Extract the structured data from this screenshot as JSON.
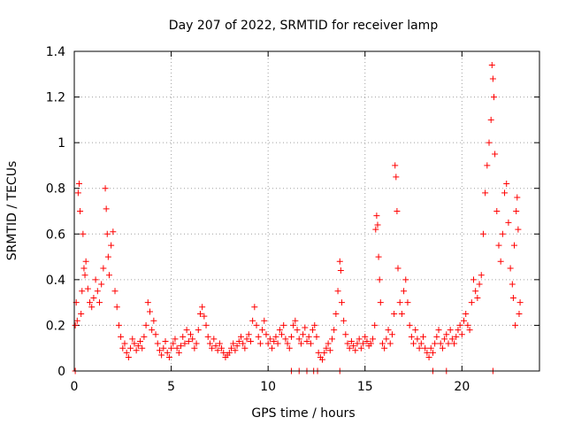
{
  "chart_data": {
    "type": "scatter",
    "title": "Day 207 of 2022, SRMTID for receiver lamp",
    "xlabel": "GPS time / hours",
    "ylabel": "SRMTID / TECUs",
    "xlim": [
      0,
      24
    ],
    "ylim": [
      0,
      1.4
    ],
    "xticks": [
      0,
      5,
      10,
      15,
      20
    ],
    "xtick_labels": [
      "0",
      "5",
      "10",
      "15",
      "20"
    ],
    "yticks": [
      0,
      0.2,
      0.4,
      0.6,
      0.8,
      1.0,
      1.2,
      1.4
    ],
    "ytick_labels": [
      "0",
      "0.2",
      "0.4",
      "0.6",
      "0.8",
      "1",
      "1.2",
      "1.4"
    ],
    "grid": true,
    "marker": "plus",
    "color": "#ff0000",
    "series": [
      {
        "name": "SRMTID",
        "points": [
          [
            0.05,
            0.2
          ],
          [
            0.1,
            0.3
          ],
          [
            0.15,
            0.22
          ],
          [
            0.2,
            0.78
          ],
          [
            0.25,
            0.82
          ],
          [
            0.3,
            0.7
          ],
          [
            0.35,
            0.25
          ],
          [
            0.4,
            0.35
          ],
          [
            0.45,
            0.6
          ],
          [
            0.5,
            0.45
          ],
          [
            0.55,
            0.42
          ],
          [
            0.6,
            0.48
          ],
          [
            0.7,
            0.36
          ],
          [
            0.8,
            0.3
          ],
          [
            0.9,
            0.28
          ],
          [
            1.0,
            0.32
          ],
          [
            1.1,
            0.4
          ],
          [
            1.2,
            0.35
          ],
          [
            1.3,
            0.3
          ],
          [
            1.4,
            0.38
          ],
          [
            1.5,
            0.45
          ],
          [
            1.6,
            0.8
          ],
          [
            1.65,
            0.71
          ],
          [
            1.7,
            0.6
          ],
          [
            1.75,
            0.5
          ],
          [
            1.8,
            0.42
          ],
          [
            1.9,
            0.55
          ],
          [
            2.0,
            0.61
          ],
          [
            2.1,
            0.35
          ],
          [
            2.2,
            0.28
          ],
          [
            2.3,
            0.2
          ],
          [
            2.4,
            0.15
          ],
          [
            2.5,
            0.1
          ],
          [
            2.6,
            0.12
          ],
          [
            2.7,
            0.08
          ],
          [
            2.8,
            0.06
          ],
          [
            2.9,
            0.1
          ],
          [
            3.0,
            0.14
          ],
          [
            3.1,
            0.12
          ],
          [
            3.2,
            0.09
          ],
          [
            3.3,
            0.11
          ],
          [
            3.4,
            0.13
          ],
          [
            3.5,
            0.1
          ],
          [
            3.6,
            0.15
          ],
          [
            3.7,
            0.2
          ],
          [
            3.8,
            0.3
          ],
          [
            3.9,
            0.26
          ],
          [
            4.0,
            0.18
          ],
          [
            4.1,
            0.22
          ],
          [
            4.2,
            0.16
          ],
          [
            4.3,
            0.12
          ],
          [
            4.4,
            0.09
          ],
          [
            4.5,
            0.07
          ],
          [
            4.6,
            0.1
          ],
          [
            4.7,
            0.13
          ],
          [
            4.8,
            0.08
          ],
          [
            4.9,
            0.06
          ],
          [
            5.0,
            0.1
          ],
          [
            5.1,
            0.12
          ],
          [
            5.2,
            0.14
          ],
          [
            5.3,
            0.1
          ],
          [
            5.4,
            0.08
          ],
          [
            5.5,
            0.11
          ],
          [
            5.6,
            0.15
          ],
          [
            5.7,
            0.12
          ],
          [
            5.8,
            0.18
          ],
          [
            5.9,
            0.13
          ],
          [
            6.0,
            0.16
          ],
          [
            6.1,
            0.14
          ],
          [
            6.2,
            0.1
          ],
          [
            6.3,
            0.12
          ],
          [
            6.4,
            0.18
          ],
          [
            6.5,
            0.25
          ],
          [
            6.6,
            0.28
          ],
          [
            6.7,
            0.24
          ],
          [
            6.8,
            0.2
          ],
          [
            6.9,
            0.15
          ],
          [
            7.0,
            0.12
          ],
          [
            7.1,
            0.1
          ],
          [
            7.2,
            0.14
          ],
          [
            7.3,
            0.11
          ],
          [
            7.4,
            0.09
          ],
          [
            7.5,
            0.12
          ],
          [
            7.6,
            0.1
          ],
          [
            7.7,
            0.08
          ],
          [
            7.8,
            0.06
          ],
          [
            7.9,
            0.07
          ],
          [
            8.0,
            0.08
          ],
          [
            8.1,
            0.1
          ],
          [
            8.2,
            0.12
          ],
          [
            8.3,
            0.09
          ],
          [
            8.4,
            0.11
          ],
          [
            8.5,
            0.13
          ],
          [
            8.6,
            0.15
          ],
          [
            8.7,
            0.12
          ],
          [
            8.8,
            0.1
          ],
          [
            8.9,
            0.14
          ],
          [
            9.0,
            0.16
          ],
          [
            9.1,
            0.13
          ],
          [
            9.2,
            0.22
          ],
          [
            9.3,
            0.28
          ],
          [
            9.4,
            0.2
          ],
          [
            9.5,
            0.15
          ],
          [
            9.6,
            0.12
          ],
          [
            9.7,
            0.18
          ],
          [
            9.8,
            0.22
          ],
          [
            9.9,
            0.16
          ],
          [
            10.0,
            0.12
          ],
          [
            10.1,
            0.14
          ],
          [
            10.2,
            0.1
          ],
          [
            10.3,
            0.13
          ],
          [
            10.4,
            0.15
          ],
          [
            10.5,
            0.12
          ],
          [
            10.6,
            0.18
          ],
          [
            10.7,
            0.16
          ],
          [
            10.8,
            0.2
          ],
          [
            10.9,
            0.14
          ],
          [
            11.0,
            0.12
          ],
          [
            11.1,
            0.1
          ],
          [
            11.2,
            0.15
          ],
          [
            11.3,
            0.2
          ],
          [
            11.4,
            0.22
          ],
          [
            11.5,
            0.18
          ],
          [
            11.6,
            0.14
          ],
          [
            11.7,
            0.12
          ],
          [
            11.8,
            0.16
          ],
          [
            11.9,
            0.19
          ],
          [
            12.0,
            0.13
          ],
          [
            12.1,
            0.15
          ],
          [
            12.2,
            0.12
          ],
          [
            12.3,
            0.18
          ],
          [
            12.4,
            0.2
          ],
          [
            12.5,
            0.15
          ],
          [
            12.6,
            0.08
          ],
          [
            12.7,
            0.06
          ],
          [
            12.8,
            0.05
          ],
          [
            12.9,
            0.08
          ],
          [
            13.0,
            0.1
          ],
          [
            13.1,
            0.12
          ],
          [
            13.2,
            0.09
          ],
          [
            13.3,
            0.14
          ],
          [
            13.4,
            0.18
          ],
          [
            13.5,
            0.25
          ],
          [
            13.6,
            0.35
          ],
          [
            13.7,
            0.48
          ],
          [
            13.75,
            0.44
          ],
          [
            13.8,
            0.3
          ],
          [
            13.9,
            0.22
          ],
          [
            14.0,
            0.16
          ],
          [
            14.1,
            0.12
          ],
          [
            14.2,
            0.1
          ],
          [
            14.3,
            0.13
          ],
          [
            14.4,
            0.11
          ],
          [
            14.5,
            0.09
          ],
          [
            14.6,
            0.12
          ],
          [
            14.7,
            0.14
          ],
          [
            14.8,
            0.1
          ],
          [
            14.9,
            0.12
          ],
          [
            15.0,
            0.15
          ],
          [
            15.1,
            0.13
          ],
          [
            15.2,
            0.11
          ],
          [
            15.3,
            0.12
          ],
          [
            15.4,
            0.14
          ],
          [
            15.5,
            0.2
          ],
          [
            15.55,
            0.62
          ],
          [
            15.6,
            0.68
          ],
          [
            15.65,
            0.64
          ],
          [
            15.7,
            0.5
          ],
          [
            15.75,
            0.4
          ],
          [
            15.8,
            0.3
          ],
          [
            15.9,
            0.12
          ],
          [
            16.0,
            0.1
          ],
          [
            16.1,
            0.14
          ],
          [
            16.2,
            0.18
          ],
          [
            16.3,
            0.12
          ],
          [
            16.4,
            0.16
          ],
          [
            16.5,
            0.25
          ],
          [
            16.55,
            0.9
          ],
          [
            16.6,
            0.85
          ],
          [
            16.65,
            0.7
          ],
          [
            16.7,
            0.45
          ],
          [
            16.8,
            0.3
          ],
          [
            16.9,
            0.25
          ],
          [
            17.0,
            0.35
          ],
          [
            17.1,
            0.4
          ],
          [
            17.2,
            0.3
          ],
          [
            17.3,
            0.2
          ],
          [
            17.4,
            0.15
          ],
          [
            17.5,
            0.12
          ],
          [
            17.6,
            0.18
          ],
          [
            17.7,
            0.14
          ],
          [
            17.8,
            0.1
          ],
          [
            17.9,
            0.12
          ],
          [
            18.0,
            0.15
          ],
          [
            18.1,
            0.1
          ],
          [
            18.2,
            0.08
          ],
          [
            18.3,
            0.06
          ],
          [
            18.4,
            0.1
          ],
          [
            18.5,
            0.08
          ],
          [
            18.6,
            0.12
          ],
          [
            18.7,
            0.15
          ],
          [
            18.8,
            0.18
          ],
          [
            18.9,
            0.12
          ],
          [
            19.0,
            0.1
          ],
          [
            19.1,
            0.14
          ],
          [
            19.2,
            0.16
          ],
          [
            19.3,
            0.12
          ],
          [
            19.4,
            0.18
          ],
          [
            19.5,
            0.14
          ],
          [
            19.6,
            0.12
          ],
          [
            19.7,
            0.15
          ],
          [
            19.8,
            0.18
          ],
          [
            19.9,
            0.2
          ],
          [
            20.0,
            0.16
          ],
          [
            20.1,
            0.22
          ],
          [
            20.2,
            0.25
          ],
          [
            20.3,
            0.2
          ],
          [
            20.4,
            0.18
          ],
          [
            20.5,
            0.3
          ],
          [
            20.6,
            0.4
          ],
          [
            20.7,
            0.35
          ],
          [
            20.8,
            0.32
          ],
          [
            20.9,
            0.38
          ],
          [
            21.0,
            0.42
          ],
          [
            21.1,
            0.6
          ],
          [
            21.2,
            0.78
          ],
          [
            21.3,
            0.9
          ],
          [
            21.4,
            1.0
          ],
          [
            21.5,
            1.1
          ],
          [
            21.55,
            1.34
          ],
          [
            21.6,
            1.28
          ],
          [
            21.65,
            1.2
          ],
          [
            21.7,
            0.95
          ],
          [
            21.8,
            0.7
          ],
          [
            21.9,
            0.55
          ],
          [
            22.0,
            0.48
          ],
          [
            22.1,
            0.6
          ],
          [
            22.2,
            0.78
          ],
          [
            22.3,
            0.82
          ],
          [
            22.4,
            0.65
          ],
          [
            22.5,
            0.45
          ],
          [
            22.6,
            0.38
          ],
          [
            22.7,
            0.55
          ],
          [
            22.8,
            0.7
          ],
          [
            22.85,
            0.76
          ],
          [
            22.9,
            0.62
          ],
          [
            22.95,
            0.25
          ],
          [
            23.0,
            0.3
          ],
          [
            22.75,
            0.2
          ],
          [
            22.65,
            0.32
          ],
          [
            0.05,
            0.0
          ],
          [
            11.2,
            0.0
          ],
          [
            11.6,
            0.0
          ],
          [
            12.0,
            0.0
          ],
          [
            12.35,
            0.0
          ],
          [
            12.55,
            0.0
          ],
          [
            13.7,
            0.0
          ],
          [
            18.5,
            0.0
          ],
          [
            19.2,
            0.0
          ],
          [
            21.6,
            0.0
          ]
        ]
      }
    ]
  }
}
